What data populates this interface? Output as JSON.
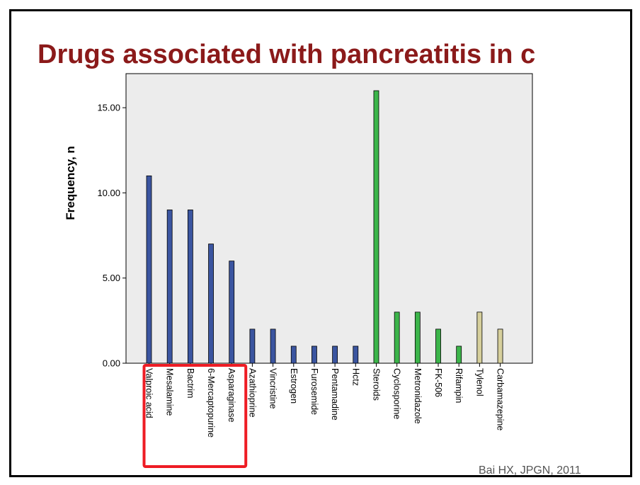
{
  "slide": {
    "title": "Drugs associated with pancreatitis in c",
    "citation": "Bai HX, JPGN, 2011"
  },
  "colors": {
    "title": "#8b1a1a",
    "plot_bg": "#ececec",
    "highlight_box": "#ee1c24"
  },
  "chart_data": {
    "type": "bar",
    "title": "",
    "xlabel": "",
    "ylabel": "Frequency, n",
    "ylim": [
      0,
      17
    ],
    "yticks": [
      0,
      5,
      10,
      15
    ],
    "ytick_labels": [
      "0.00",
      "5.00",
      "10.00",
      "15.00"
    ],
    "grid": false,
    "categories": [
      "Valproic acid",
      "Mesalamine",
      "Bactrim",
      "6-Mercaptopurine",
      "Asparaginase",
      "Azathioprine",
      "Vincristine",
      "Estrogen",
      "Furosemide",
      "Pentamadine",
      "Hctz",
      "Steroids",
      "Cyclosporine",
      "Metronidazole",
      "FK-506",
      "Rifampin",
      "Tylenol",
      "Carbamazepine"
    ],
    "values": [
      11,
      9,
      9,
      7,
      6,
      2,
      2,
      1,
      1,
      1,
      1,
      16,
      3,
      3,
      2,
      1,
      3,
      2
    ],
    "bar_colors": [
      "#3b55a0",
      "#3b55a0",
      "#3b55a0",
      "#3b55a0",
      "#3b55a0",
      "#3b55a0",
      "#3b55a0",
      "#3b55a0",
      "#3b55a0",
      "#3b55a0",
      "#3b55a0",
      "#3cb54a",
      "#3cb54a",
      "#3cb54a",
      "#3cb54a",
      "#3cb54a",
      "#d6cf9c",
      "#d6cf9c"
    ],
    "highlighted_categories": [
      "Valproic acid",
      "Mesalamine",
      "Bactrim",
      "6-Mercaptopurine",
      "Asparaginase"
    ]
  }
}
